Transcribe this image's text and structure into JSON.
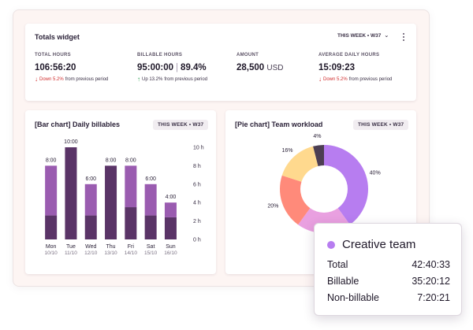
{
  "totals": {
    "title": "Totals widget",
    "week_label": "THIS WEEK • W37",
    "metrics": [
      {
        "label": "TOTAL HOURS",
        "value": "106:56:20",
        "trend_dir": "down",
        "trend_pct": "Down 5.2%",
        "trend_text": "from previous period"
      },
      {
        "label": "BILLABLE HOURS",
        "value": "95:00:00",
        "secondary": "89.4%",
        "trend_dir": "up",
        "trend_pct": "Up 13.2%",
        "trend_text": "from previous period"
      },
      {
        "label": "AMOUNT",
        "value": "28,500",
        "unit": "USD"
      },
      {
        "label": "AVERAGE DAILY HOURS",
        "value": "15:09:23",
        "trend_dir": "down",
        "trend_pct": "Down 5.2%",
        "trend_text": "from previous period"
      }
    ]
  },
  "bar_card": {
    "title": "[Bar chart] Daily billables",
    "week_label": "THIS WEEK • W37"
  },
  "pie_card": {
    "title": "[Pie chart] Team workload",
    "week_label": "THIS WEEK • W37"
  },
  "colors": {
    "bar_top": "#9a5cb0",
    "bar_bottom": "#5a3467",
    "bar_highlight_top": "#5a3467",
    "trend_down": "#d02e2e",
    "trend_up": "#1f9a4b"
  },
  "chart_data": [
    {
      "type": "bar",
      "title": "[Bar chart] Daily billables",
      "categories": [
        "Mon",
        "Tue",
        "Wed",
        "Thu",
        "Fri",
        "Sat",
        "Sun"
      ],
      "dates": [
        "10/10",
        "11/10",
        "12/10",
        "13/10",
        "14/10",
        "15/10",
        "16/10"
      ],
      "value_labels": [
        "8:00",
        "10:00",
        "6:00",
        "8:00",
        "8:00",
        "6:00",
        "4:00"
      ],
      "highlight_index": 1,
      "series": [
        {
          "values": [
            2.6,
            10,
            2.6,
            8,
            3.5,
            2.6,
            2.4
          ]
        },
        {
          "values": [
            5.4,
            0,
            3.4,
            0,
            4.5,
            3.4,
            1.6
          ]
        }
      ],
      "yticks": [
        "0 h",
        "2 h",
        "4 h",
        "6 h",
        "8 h",
        "10 h"
      ],
      "ylim": [
        0,
        10
      ]
    },
    {
      "type": "pie",
      "title": "[Pie chart] Team workload",
      "slices": [
        {
          "label": "40%",
          "value": 40,
          "color": "#b77df0"
        },
        {
          "label": "",
          "value": 20,
          "color": "#e9a0e0"
        },
        {
          "label": "20%",
          "value": 20,
          "color": "#ff8a7a"
        },
        {
          "label": "16%",
          "value": 16,
          "color": "#ffd98e"
        },
        {
          "label": "4%",
          "value": 4,
          "color": "#4c3e52"
        }
      ]
    }
  ],
  "tooltip": {
    "title": "Creative team",
    "rows": [
      {
        "label": "Total",
        "value": "42:40:33"
      },
      {
        "label": "Billable",
        "value": "35:20:12"
      },
      {
        "label": "Non-billable",
        "value": "7:20:21"
      }
    ]
  }
}
